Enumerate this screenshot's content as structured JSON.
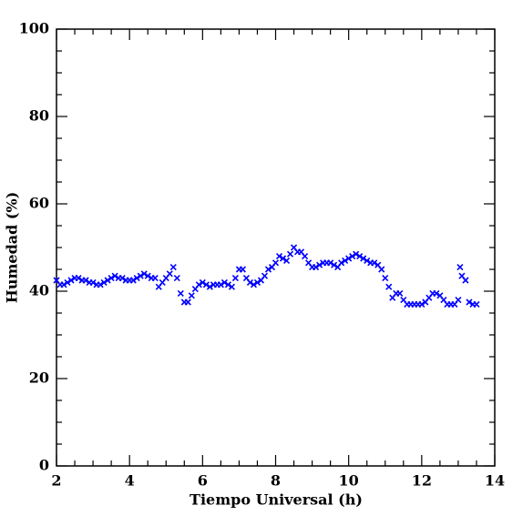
{
  "chart_data": {
    "type": "scatter",
    "x_label": "Tiempo Universal (h)",
    "y_label": "Humedad (%)",
    "xlim": [
      2,
      14
    ],
    "ylim": [
      0,
      100
    ],
    "xticks": [
      2,
      4,
      6,
      8,
      10,
      12,
      14
    ],
    "yticks": [
      0,
      20,
      40,
      60,
      80,
      100
    ],
    "x_minor_ticks": [
      2.5,
      3,
      3.5,
      4.5,
      5,
      5.5,
      6.5,
      7,
      7.5,
      8.5,
      9,
      9.5,
      10.5,
      11,
      11.5,
      12.5,
      13,
      13.5
    ],
    "y_minor_ticks": [
      5,
      10,
      15,
      25,
      30,
      35,
      45,
      50,
      55,
      65,
      70,
      75,
      85,
      90,
      95
    ],
    "color": "#0000ff",
    "x": [
      2.0,
      2.1,
      2.2,
      2.3,
      2.4,
      2.5,
      2.6,
      2.7,
      2.8,
      2.9,
      3.0,
      3.1,
      3.2,
      3.3,
      3.4,
      3.5,
      3.6,
      3.7,
      3.8,
      3.9,
      4.0,
      4.1,
      4.2,
      4.3,
      4.4,
      4.5,
      4.6,
      4.7,
      4.8,
      4.9,
      5.0,
      5.1,
      5.2,
      5.3,
      5.4,
      5.5,
      5.6,
      5.7,
      5.8,
      5.9,
      6.0,
      6.1,
      6.2,
      6.3,
      6.4,
      6.5,
      6.6,
      6.7,
      6.8,
      6.9,
      7.0,
      7.1,
      7.2,
      7.3,
      7.4,
      7.5,
      7.6,
      7.7,
      7.8,
      7.9,
      8.0,
      8.1,
      8.2,
      8.3,
      8.4,
      8.5,
      8.6,
      8.7,
      8.8,
      8.9,
      9.0,
      9.1,
      9.2,
      9.3,
      9.4,
      9.5,
      9.6,
      9.7,
      9.8,
      9.9,
      10.0,
      10.1,
      10.2,
      10.3,
      10.4,
      10.5,
      10.6,
      10.7,
      10.8,
      10.9,
      11.0,
      11.1,
      11.2,
      11.3,
      11.4,
      11.5,
      11.6,
      11.7,
      11.8,
      11.9,
      12.0,
      12.1,
      12.2,
      12.3,
      12.4,
      12.5,
      12.6,
      12.7,
      12.8,
      12.9,
      13.0,
      13.05,
      13.1,
      13.2,
      13.3,
      13.4,
      13.5
    ],
    "values": [
      42.5,
      41.5,
      41.5,
      42,
      42.5,
      43,
      43,
      42.5,
      42.5,
      42,
      42,
      41.5,
      41.5,
      42,
      42.5,
      43,
      43.5,
      43,
      43,
      42.5,
      42.5,
      42.5,
      43,
      43.5,
      44,
      43.5,
      43,
      43,
      41,
      42,
      43,
      44,
      45.5,
      43,
      39.5,
      37.5,
      37.5,
      39,
      40.5,
      41.5,
      42,
      41.5,
      41,
      41.5,
      41.5,
      41.5,
      42,
      41.5,
      41,
      43,
      45,
      45,
      43,
      42,
      41.5,
      42,
      42.5,
      43.5,
      45,
      45.5,
      46.5,
      48,
      47.5,
      47,
      48.5,
      50,
      49,
      49,
      48,
      46.5,
      45.5,
      45.5,
      46,
      46.5,
      46.5,
      46.5,
      46,
      45.5,
      46.5,
      47,
      47.5,
      48,
      48.5,
      48,
      47.5,
      47,
      46.5,
      46.5,
      46,
      45,
      43,
      41,
      38.5,
      39.5,
      39.5,
      38,
      37,
      37,
      37,
      37,
      37,
      37.5,
      38.5,
      39.5,
      39.5,
      39,
      38,
      37,
      37,
      37,
      38,
      45.5,
      43.5,
      42.5,
      37.5,
      37,
      37
    ]
  }
}
